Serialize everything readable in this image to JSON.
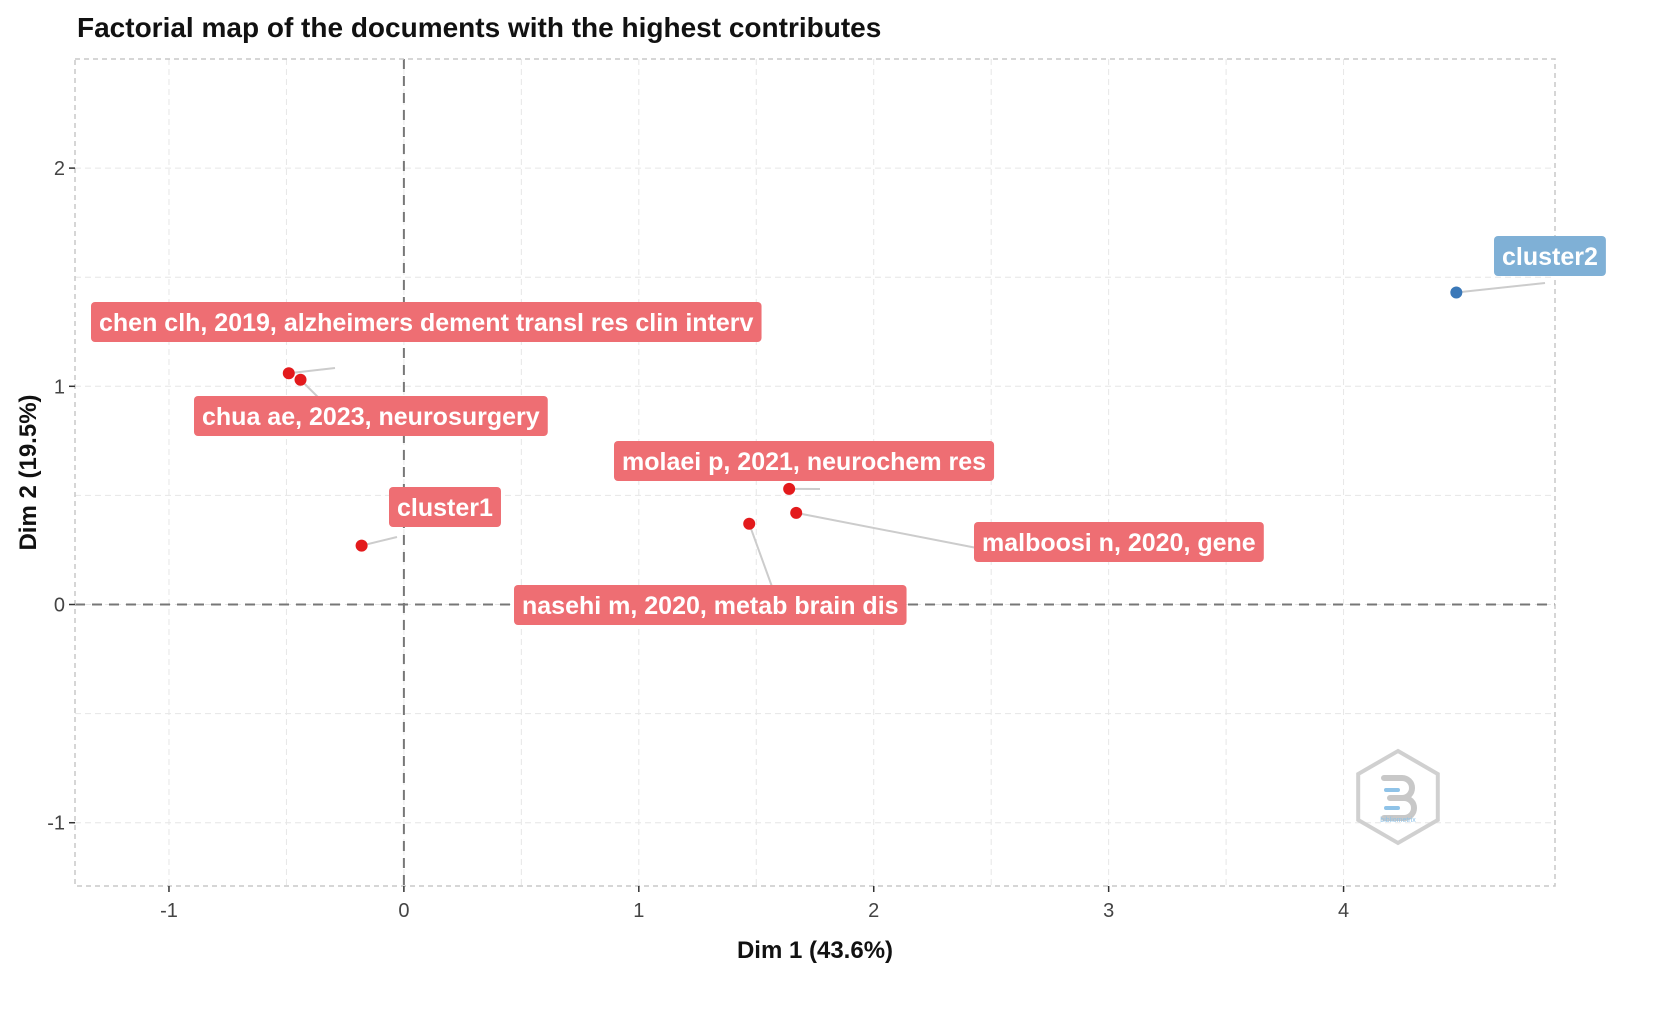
{
  "chart_data": {
    "type": "scatter",
    "title": "Factorial map of the documents with the highest contributes",
    "xlabel": "Dim 1 (43.6%)",
    "ylabel": "Dim 2 (19.5%)",
    "xlim": [
      -1.4,
      4.9
    ],
    "ylim": [
      -1.29,
      2.5
    ],
    "xticks": [
      -1,
      0,
      1,
      2,
      3,
      4
    ],
    "yticks": [
      -1,
      0,
      1,
      2
    ],
    "grid": true,
    "reference_lines": {
      "x": 0,
      "y": 0
    },
    "colors": {
      "cluster1": "#e31a1c",
      "cluster1_label": "#ee6e73",
      "cluster2": "#3a78b8",
      "cluster2_label": "#7fb0d6",
      "guide": "#cccccc",
      "grid": "#e6e6e6"
    },
    "points": [
      {
        "label": "chen clh, 2019, alzheimers dement transl res clin interv",
        "x": -0.49,
        "y": 1.06,
        "cluster": "cluster1"
      },
      {
        "label": "chua ae, 2023, neurosurgery",
        "x": -0.44,
        "y": 1.03,
        "cluster": "cluster1"
      },
      {
        "label": "cluster1",
        "x": -0.18,
        "y": 0.27,
        "cluster": "cluster1"
      },
      {
        "label": "molaei p, 2021, neurochem res",
        "x": 1.64,
        "y": 0.53,
        "cluster": "cluster1"
      },
      {
        "label": "malboosi n, 2020, gene",
        "x": 1.67,
        "y": 0.42,
        "cluster": "cluster1"
      },
      {
        "label": "nasehi m, 2020, metab brain dis",
        "x": 1.47,
        "y": 0.37,
        "cluster": "cluster1"
      },
      {
        "label": "cluster2",
        "x": 4.48,
        "y": 1.43,
        "cluster": "cluster2"
      }
    ],
    "watermark_text": "bibliometrix"
  }
}
